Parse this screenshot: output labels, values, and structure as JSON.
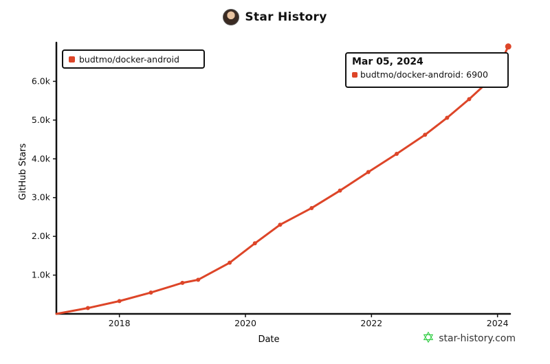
{
  "header": {
    "title": "Star History"
  },
  "footer": {
    "site": "star-history.com"
  },
  "legend": {
    "label": "budtmo/docker-android"
  },
  "tooltip": {
    "date": "Mar 05, 2024",
    "label": "budtmo/docker-android: 6900"
  },
  "colors": {
    "series": "#dd4528",
    "axis": "#111111",
    "logo": "#2ecc40"
  },
  "chart_data": {
    "type": "line",
    "title": "Star History",
    "xlabel": "Date",
    "ylabel": "GitHub Stars",
    "x_ticks": [
      "2018",
      "2020",
      "2022",
      "2024"
    ],
    "y_ticks": [
      "1.0k",
      "2.0k",
      "3.0k",
      "4.0k",
      "5.0k",
      "6.0k"
    ],
    "ylim": [
      0,
      7000
    ],
    "xlim": [
      2017.0,
      2024.2
    ],
    "grid": false,
    "legend_position": "top-left",
    "series": [
      {
        "name": "budtmo/docker-android",
        "x": [
          2017.0,
          2017.5,
          2018.0,
          2018.5,
          2019.0,
          2019.25,
          2019.75,
          2020.15,
          2020.55,
          2021.05,
          2021.5,
          2021.95,
          2022.4,
          2022.85,
          2023.2,
          2023.55,
          2023.95,
          2024.17
        ],
        "y": [
          0,
          150,
          330,
          550,
          800,
          880,
          1320,
          1820,
          2300,
          2730,
          3180,
          3660,
          4130,
          4620,
          5060,
          5540,
          6140,
          6900
        ]
      }
    ]
  }
}
